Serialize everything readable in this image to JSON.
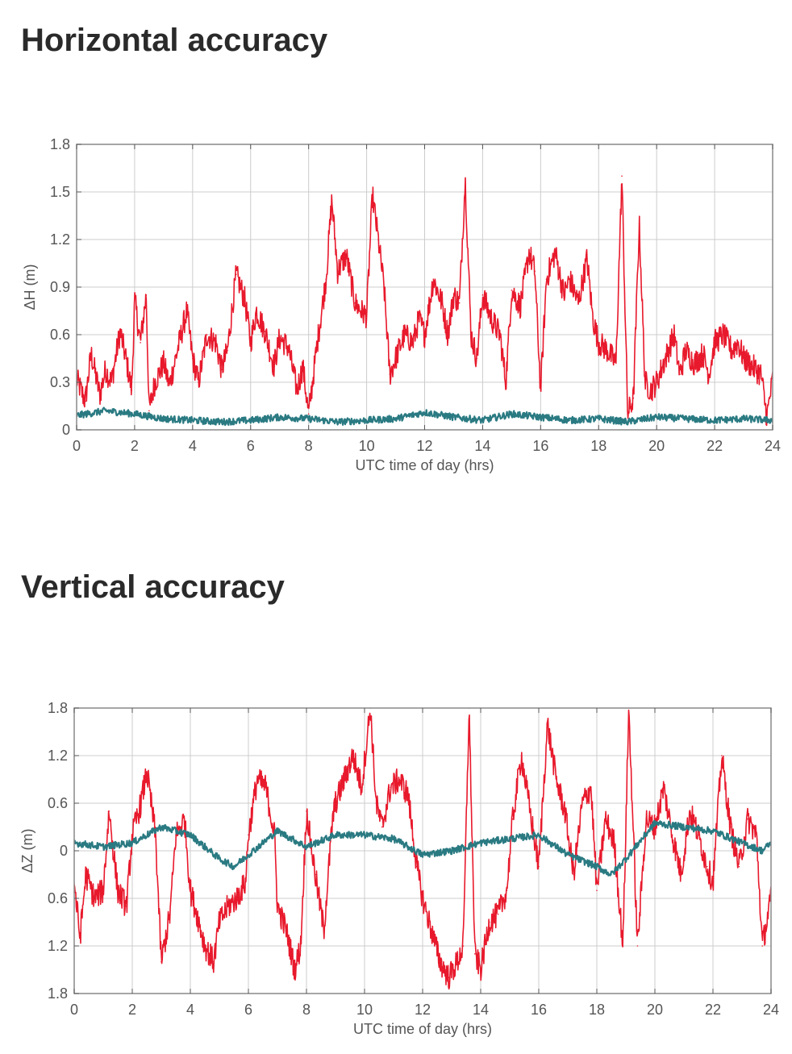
{
  "titles": {
    "horizontal": "Horizontal accuracy",
    "vertical": "Vertical accuracy"
  },
  "colors": {
    "series_a": "#e8192c",
    "series_b": "#2a7a82",
    "grid": "#cccccc",
    "frame": "#888888"
  },
  "chart_data": [
    {
      "type": "line",
      "title": "",
      "xlabel": "UTC time of day (hrs)",
      "ylabel": "ΔH (m)",
      "xlim": [
        0,
        24
      ],
      "ylim": [
        0,
        1.8
      ],
      "xticks": [
        0,
        2,
        4,
        6,
        8,
        10,
        12,
        14,
        16,
        18,
        20,
        22,
        24
      ],
      "xtick_labels": [
        "0",
        "2",
        "4",
        "6",
        "8",
        "10",
        "12",
        "14",
        "16",
        "18",
        "20",
        "22",
        "24"
      ],
      "yticks": [
        0,
        0.3,
        0.6,
        0.9,
        1.2,
        1.5,
        1.8
      ],
      "ytick_labels": [
        "0",
        "0.3",
        "0.6",
        "0.9",
        "1.2",
        "1.5",
        "1.8"
      ],
      "grid": true,
      "series": [
        {
          "color": "#e8192c",
          "x": [
            0,
            0.3,
            0.5,
            0.8,
            1.0,
            1.2,
            1.5,
            1.7,
            1.9,
            2.0,
            2.2,
            2.4,
            2.5,
            2.7,
            3.0,
            3.2,
            3.5,
            3.8,
            4.0,
            4.2,
            4.5,
            4.8,
            5.0,
            5.2,
            5.5,
            5.8,
            6.0,
            6.2,
            6.5,
            6.8,
            7.0,
            7.3,
            7.6,
            7.8,
            8.0,
            8.3,
            8.6,
            8.8,
            9.0,
            9.3,
            9.6,
            9.8,
            10.0,
            10.2,
            10.4,
            10.6,
            10.8,
            11.0,
            11.3,
            11.6,
            11.8,
            12.0,
            12.3,
            12.6,
            12.8,
            13.0,
            13.2,
            13.4,
            13.6,
            13.8,
            14.0,
            14.3,
            14.6,
            14.8,
            15.0,
            15.3,
            15.6,
            15.8,
            16.0,
            16.2,
            16.5,
            16.8,
            17.0,
            17.3,
            17.6,
            17.8,
            18.0,
            18.3,
            18.6,
            18.8,
            19.0,
            19.2,
            19.4,
            19.6,
            19.8,
            20.0,
            20.3,
            20.6,
            20.8,
            21.0,
            21.3,
            21.6,
            21.8,
            22.0,
            22.3,
            22.6,
            22.8,
            23.0,
            23.3,
            23.6,
            23.8,
            24.0
          ],
          "y": [
            0.32,
            0.18,
            0.48,
            0.22,
            0.38,
            0.3,
            0.62,
            0.45,
            0.25,
            0.82,
            0.55,
            0.85,
            0.12,
            0.3,
            0.42,
            0.28,
            0.52,
            0.75,
            0.45,
            0.3,
            0.6,
            0.55,
            0.38,
            0.5,
            0.98,
            0.82,
            0.55,
            0.75,
            0.62,
            0.4,
            0.58,
            0.52,
            0.25,
            0.4,
            0.1,
            0.55,
            0.95,
            1.45,
            1.0,
            1.1,
            0.8,
            0.75,
            0.72,
            1.48,
            1.2,
            0.9,
            0.35,
            0.45,
            0.6,
            0.55,
            0.7,
            0.6,
            0.95,
            0.8,
            0.6,
            0.85,
            0.8,
            1.58,
            0.6,
            0.45,
            0.85,
            0.7,
            0.6,
            0.3,
            0.88,
            0.78,
            1.12,
            1.0,
            0.25,
            0.95,
            1.12,
            0.85,
            0.95,
            0.8,
            1.08,
            0.7,
            0.55,
            0.5,
            0.42,
            1.6,
            0.1,
            0.2,
            1.3,
            0.3,
            0.25,
            0.3,
            0.45,
            0.6,
            0.35,
            0.5,
            0.42,
            0.48,
            0.35,
            0.55,
            0.6,
            0.5,
            0.55,
            0.45,
            0.4,
            0.35,
            0.08,
            0.32
          ]
        },
        {
          "color": "#2a7a82",
          "x": [
            0,
            1,
            2,
            3,
            4,
            5,
            6,
            7,
            8,
            9,
            10,
            11,
            12,
            13,
            14,
            15,
            16,
            17,
            18,
            19,
            20,
            21,
            22,
            23,
            24
          ],
          "y": [
            0.09,
            0.12,
            0.1,
            0.07,
            0.06,
            0.05,
            0.06,
            0.08,
            0.07,
            0.05,
            0.06,
            0.07,
            0.11,
            0.08,
            0.06,
            0.1,
            0.08,
            0.06,
            0.07,
            0.05,
            0.08,
            0.07,
            0.06,
            0.07,
            0.06
          ]
        }
      ]
    },
    {
      "type": "line",
      "title": "",
      "xlabel": "UTC time of day (hrs)",
      "ylabel": "ΔZ (m)",
      "xlim": [
        0,
        24
      ],
      "ylim": [
        -1.8,
        1.8
      ],
      "xticks": [
        0,
        2,
        4,
        6,
        8,
        10,
        12,
        14,
        16,
        18,
        20,
        22,
        24
      ],
      "xtick_labels": [
        "0",
        "2",
        "4",
        "6",
        "8",
        "10",
        "12",
        "14",
        "16",
        "18",
        "20",
        "22",
        "24"
      ],
      "yticks": [
        -1.8,
        -1.2,
        -0.6,
        0,
        0.6,
        1.2,
        1.8
      ],
      "ytick_labels": [
        "1.8",
        "1.2",
        "0.6",
        "0",
        "0.6",
        "1.2",
        "1.8"
      ],
      "grid": true,
      "series": [
        {
          "color": "#e8192c",
          "x": [
            0,
            0.2,
            0.4,
            0.7,
            1.0,
            1.2,
            1.5,
            1.8,
            2.0,
            2.3,
            2.5,
            2.8,
            3.0,
            3.3,
            3.5,
            3.8,
            4.0,
            4.3,
            4.5,
            4.8,
            5.0,
            5.3,
            5.6,
            5.9,
            6.0,
            6.3,
            6.6,
            6.9,
            7.0,
            7.3,
            7.6,
            7.8,
            8.0,
            8.3,
            8.6,
            8.9,
            9.0,
            9.3,
            9.6,
            9.9,
            10.2,
            10.4,
            10.6,
            10.9,
            11.2,
            11.5,
            11.8,
            12.0,
            12.3,
            12.6,
            12.9,
            13.2,
            13.4,
            13.6,
            13.8,
            14.0,
            14.3,
            14.6,
            14.9,
            15.1,
            15.4,
            15.7,
            16.0,
            16.3,
            16.6,
            16.9,
            17.2,
            17.5,
            17.8,
            18.0,
            18.3,
            18.6,
            18.9,
            19.1,
            19.4,
            19.7,
            20.0,
            20.3,
            20.6,
            20.9,
            21.2,
            21.5,
            21.8,
            22.0,
            22.3,
            22.6,
            22.9,
            23.2,
            23.5,
            23.7,
            24.0
          ],
          "y": [
            -0.4,
            -1.1,
            -0.3,
            -0.6,
            -0.5,
            0.5,
            -0.5,
            -0.7,
            0.2,
            0.6,
            1.0,
            0.2,
            -1.4,
            -0.8,
            0.2,
            0.4,
            -0.5,
            -0.9,
            -1.2,
            -1.4,
            -0.9,
            -0.7,
            -0.6,
            -0.4,
            0.2,
            0.9,
            0.8,
            0.2,
            -0.7,
            -1.0,
            -1.5,
            -1.2,
            0.5,
            -0.3,
            -1.0,
            0.4,
            0.6,
            0.9,
            1.2,
            0.8,
            1.8,
            0.6,
            0.3,
            0.8,
            0.9,
            0.7,
            -0.2,
            -0.6,
            -1.0,
            -1.4,
            -1.6,
            -1.4,
            -1.2,
            1.8,
            -1.3,
            -1.5,
            -0.9,
            -0.8,
            -0.5,
            0.4,
            1.2,
            0.5,
            -0.2,
            1.6,
            0.9,
            0.5,
            -0.3,
            0.6,
            0.8,
            -0.5,
            0.4,
            0.1,
            -1.2,
            1.8,
            -1.2,
            0.4,
            0.3,
            0.8,
            0.2,
            -0.3,
            0.5,
            0.2,
            -0.2,
            -0.4,
            1.2,
            0.3,
            -0.2,
            0.4,
            0.2,
            -1.2,
            -0.6
          ],
          "ymax_clip": true
        },
        {
          "color": "#2a7a82",
          "x": [
            0,
            1,
            2,
            3,
            4,
            5,
            5.5,
            6,
            7,
            8,
            9,
            10,
            11,
            12,
            13,
            14,
            15,
            16,
            17,
            18,
            18.5,
            19,
            20,
            21,
            22,
            23,
            23.7,
            24
          ],
          "y": [
            0.1,
            0.05,
            0.1,
            0.3,
            0.2,
            -0.1,
            -0.2,
            -0.05,
            0.25,
            0.05,
            0.2,
            0.2,
            0.15,
            -0.05,
            0.0,
            0.1,
            0.15,
            0.2,
            -0.05,
            -0.2,
            -0.3,
            -0.1,
            0.35,
            0.3,
            0.25,
            0.1,
            0.0,
            0.1
          ]
        }
      ]
    }
  ]
}
